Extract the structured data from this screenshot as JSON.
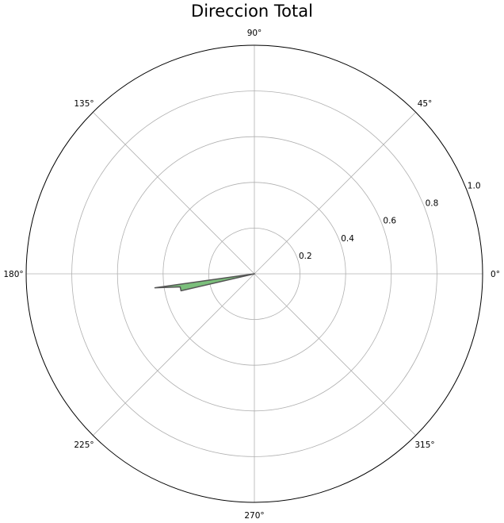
{
  "chart_data": {
    "type": "polar",
    "title": "Direccion Total",
    "angle_ticks": [
      "0°",
      "45°",
      "90°",
      "135°",
      "180°",
      "225°",
      "270°",
      "315°"
    ],
    "angle_tick_values_deg": [
      0,
      45,
      90,
      135,
      180,
      225,
      270,
      315
    ],
    "radial_ticks": [
      "0.2",
      "0.4",
      "0.6",
      "0.8",
      "1.0"
    ],
    "radial_tick_values": [
      0.2,
      0.4,
      0.6,
      0.8,
      1.0
    ],
    "rlim": [
      0,
      1.0
    ],
    "grid": true,
    "series": [
      {
        "kind": "filled-wedge",
        "fill_color": "#7bbf7b",
        "edge_color": "#555555",
        "points": [
          {
            "theta_deg": 0,
            "r": 0.0
          },
          {
            "theta_deg": 188,
            "r": 0.44
          },
          {
            "theta_deg": 190,
            "r": 0.33
          },
          {
            "theta_deg": 193,
            "r": 0.33
          },
          {
            "theta_deg": 0,
            "r": 0.0
          }
        ]
      }
    ],
    "colors": {
      "grid": "#b0b0b0",
      "frame": "#000000",
      "text": "#000000"
    }
  }
}
